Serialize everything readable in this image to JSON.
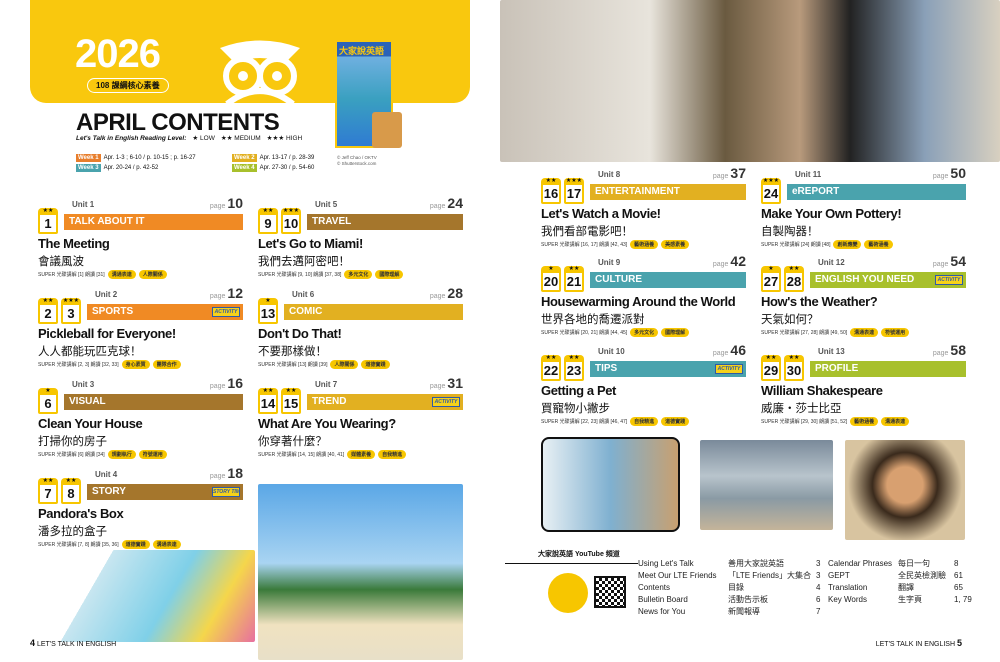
{
  "header": {
    "year": "2026",
    "core_badge": "108 課綱核心素養",
    "title": "APRIL CONTENTS",
    "reading_level_label": "Let's Talk in English Reading Level:",
    "levels": [
      "★ LOW",
      "★★ MEDIUM",
      "★★★ HIGH"
    ],
    "weeks": [
      {
        "label": "Week 1",
        "range": "Apr. 1-3 ; 6-10 / p. 10-15 ; p. 16-27",
        "color": "#e87e2c"
      },
      {
        "label": "Week 2",
        "range": "Apr. 13-17 / p. 28-39",
        "color": "#e2b021"
      },
      {
        "label": "Week 3",
        "range": "Apr. 20-24 / p. 42-52",
        "color": "#4aa3ad"
      },
      {
        "label": "Week 4",
        "range": "Apr. 27-30 / p. 54-60",
        "color": "#a8c02c"
      }
    ],
    "cover_title": "大家說英語",
    "cover_credit": [
      "© Jeff Chao / OKTV",
      "© Shutterstock.com"
    ]
  },
  "units": [
    {
      "unit": "Unit 1",
      "page": "10",
      "days": [
        {
          "n": "1",
          "stars": "★★"
        }
      ],
      "category": "TALK ABOUT IT",
      "color": "#f08a24",
      "title": "The Meeting",
      "zh": "會議風波",
      "meta": "SUPER 光碟講解 [1]  朗讀 [31]",
      "tags": [
        "溝通表達",
        "人際關係"
      ]
    },
    {
      "unit": "Unit 2",
      "page": "12",
      "days": [
        {
          "n": "2",
          "stars": "★★"
        },
        {
          "n": "3",
          "stars": "★★★"
        }
      ],
      "category": "SPORTS",
      "color": "#f08a24",
      "activity": "ACTIVITY",
      "title": "Pickleball for Everyone!",
      "zh": "人人都能玩匹克球！",
      "meta": "SUPER 光碟講解 [2, 3]  朗讀 [32, 33]",
      "tags": [
        "身心素質",
        "團隊合作"
      ]
    },
    {
      "unit": "Unit 3",
      "page": "16",
      "days": [
        {
          "n": "6",
          "stars": "★"
        }
      ],
      "category": "VISUAL",
      "color": "#a5762c",
      "title": "Clean Your House",
      "zh": "打掃你的房子",
      "meta": "SUPER 光碟講解 [6]  朗讀 [34]",
      "tags": [
        "規劃執行",
        "符號運用"
      ]
    },
    {
      "unit": "Unit 4",
      "page": "18",
      "days": [
        {
          "n": "7",
          "stars": "★★"
        },
        {
          "n": "8",
          "stars": "★★"
        }
      ],
      "category": "STORY",
      "color": "#a5762c",
      "activity": "STORY TIME",
      "title": "Pandora's Box",
      "zh": "潘多拉的盒子",
      "meta": "SUPER 光碟講解 [7, 8]  朗讀 [35, 36]",
      "tags": [
        "道德實踐",
        "溝通表達"
      ]
    },
    {
      "unit": "Unit 5",
      "page": "24",
      "days": [
        {
          "n": "9",
          "stars": "★★"
        },
        {
          "n": "10",
          "stars": "★★★"
        }
      ],
      "category": "TRAVEL",
      "color": "#a5762c",
      "title": "Let's Go to Miami!",
      "zh": "我們去邁阿密吧！",
      "meta": "SUPER 光碟講解 [9, 10]  朗讀 [37, 38]",
      "tags": [
        "多元文化",
        "國際理解"
      ]
    },
    {
      "unit": "Unit 6",
      "page": "28",
      "days": [
        {
          "n": "13",
          "stars": "★"
        }
      ],
      "category": "COMIC",
      "color": "#e2b021",
      "title": "Don't Do That!",
      "zh": "不要那樣做！",
      "meta": "SUPER 光碟講解 [13]  朗讀 [39]",
      "tags": [
        "人際關係",
        "道德實踐"
      ]
    },
    {
      "unit": "Unit 7",
      "page": "31",
      "days": [
        {
          "n": "14",
          "stars": "★★"
        },
        {
          "n": "15",
          "stars": "★★"
        }
      ],
      "category": "TREND",
      "color": "#e2b021",
      "activity": "ACTIVITY",
      "title": "What Are You Wearing?",
      "zh": "你穿著什麼？",
      "meta": "SUPER 光碟講解 [14, 15]  朗讀 [40, 41]",
      "tags": [
        "媒體素養",
        "自我精進"
      ]
    },
    {
      "unit": "Unit 8",
      "page": "37",
      "days": [
        {
          "n": "16",
          "stars": "★★"
        },
        {
          "n": "17",
          "stars": "★★★"
        }
      ],
      "category": "ENTERTAINMENT",
      "color": "#e2b021",
      "title": "Let's Watch a Movie!",
      "zh": "我們看部電影吧！",
      "meta": "SUPER 光碟講解 [16, 17]  朗讀 [42, 43]",
      "tags": [
        "藝術涵養",
        "美感素養"
      ]
    },
    {
      "unit": "Unit 9",
      "page": "42",
      "days": [
        {
          "n": "20",
          "stars": "★"
        },
        {
          "n": "21",
          "stars": "★★"
        }
      ],
      "category": "CULTURE",
      "color": "#4aa3ad",
      "title": "Housewarming Around the World",
      "zh": "世界各地的喬遷派對",
      "meta": "SUPER 光碟講解 [20, 21]  朗讀 [44, 45]",
      "tags": [
        "多元文化",
        "國際理解"
      ]
    },
    {
      "unit": "Unit 10",
      "page": "46",
      "days": [
        {
          "n": "22",
          "stars": "★★"
        },
        {
          "n": "23",
          "stars": "★★"
        }
      ],
      "category": "TIPS",
      "color": "#4aa3ad",
      "activity": "ACTIVITY",
      "title": "Getting a Pet",
      "zh": "買寵物小撇步",
      "meta": "SUPER 光碟講解 [22, 23]  朗讀 [46, 47]",
      "tags": [
        "自我精進",
        "道德實踐"
      ]
    },
    {
      "unit": "Unit 11",
      "page": "50",
      "days": [
        {
          "n": "24",
          "stars": "★★★"
        }
      ],
      "category": "eREPORT",
      "color": "#4aa3ad",
      "title": "Make Your Own Pottery!",
      "zh": "自製陶器！",
      "meta": "SUPER 光碟講解 [24]  朗讀 [48]",
      "tags": [
        "創新應變",
        "藝術涵養"
      ]
    },
    {
      "unit": "Unit 12",
      "page": "54",
      "days": [
        {
          "n": "27",
          "stars": "★"
        },
        {
          "n": "28",
          "stars": "★★"
        }
      ],
      "category": "ENGLISH YOU NEED",
      "color": "#a8c02c",
      "activity": "ACTIVITY",
      "title": "How's the Weather?",
      "zh": "天氣如何？",
      "meta": "SUPER 光碟講解 [27, 28]  朗讀 [49, 50]",
      "tags": [
        "溝通表達",
        "符號運用"
      ]
    },
    {
      "unit": "Unit 13",
      "page": "58",
      "days": [
        {
          "n": "29",
          "stars": "★★"
        },
        {
          "n": "30",
          "stars": "★★"
        }
      ],
      "category": "PROFILE",
      "color": "#a8c02c",
      "title": "William Shakespeare",
      "zh": "威廉・莎士比亞",
      "meta": "SUPER 光碟講解 [29, 30]  朗讀 [51, 52]",
      "tags": [
        "藝術涵養",
        "溝通表達"
      ]
    }
  ],
  "page_word": "page",
  "youtube_label": "大家說英語 YouTube 頻道",
  "index": [
    {
      "en": "Using Let's Talk",
      "zh": "善用大家說英語",
      "p": "3"
    },
    {
      "en": "Meet Our LTE Friends",
      "zh": "「LTE Friends」大集合",
      "p": "3"
    },
    {
      "en": "Contents",
      "zh": "目錄",
      "p": "4"
    },
    {
      "en": "Bulletin Board",
      "zh": "活動告示板",
      "p": "6"
    },
    {
      "en": "News for You",
      "zh": "新聞報導",
      "p": "7"
    },
    {
      "en": "Calendar Phrases",
      "zh": "每日一句",
      "p": "8"
    },
    {
      "en": "GEPT",
      "zh": "全民英檢測驗",
      "p": "61"
    },
    {
      "en": "Translation",
      "zh": "翻譯",
      "p": "65"
    },
    {
      "en": "Key Words",
      "zh": "生字頁",
      "p": "1, 79"
    }
  ],
  "footer": {
    "left_num": "4",
    "left_text": "LET'S TALK IN ENGLISH",
    "right_text": "LET'S TALK IN ENGLISH",
    "right_num": "5"
  }
}
